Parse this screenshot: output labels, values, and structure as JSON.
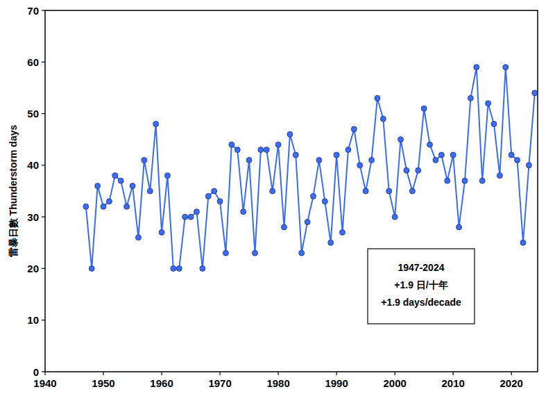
{
  "chart_data": {
    "type": "line",
    "ylabel": "雷暴日數 Thunderstorm days",
    "annotations": [
      "1947-2024",
      "+1.9 日/十年",
      "+1.9 days/decade"
    ],
    "x": [
      1947,
      1948,
      1949,
      1950,
      1951,
      1952,
      1953,
      1954,
      1955,
      1956,
      1957,
      1958,
      1959,
      1960,
      1961,
      1962,
      1963,
      1964,
      1965,
      1966,
      1967,
      1968,
      1969,
      1970,
      1971,
      1972,
      1973,
      1974,
      1975,
      1976,
      1977,
      1978,
      1979,
      1980,
      1981,
      1982,
      1983,
      1984,
      1985,
      1986,
      1987,
      1988,
      1989,
      1990,
      1991,
      1992,
      1993,
      1994,
      1995,
      1996,
      1997,
      1998,
      1999,
      2000,
      2001,
      2002,
      2003,
      2004,
      2005,
      2006,
      2007,
      2008,
      2009,
      2010,
      2011,
      2012,
      2013,
      2014,
      2015,
      2016,
      2017,
      2018,
      2019,
      2020,
      2021,
      2022,
      2023,
      2024
    ],
    "values": [
      32,
      20,
      36,
      32,
      33,
      38,
      37,
      32,
      36,
      26,
      41,
      35,
      48,
      27,
      38,
      20,
      20,
      30,
      30,
      31,
      20,
      34,
      35,
      33,
      23,
      44,
      43,
      31,
      41,
      23,
      43,
      43,
      35,
      44,
      28,
      46,
      42,
      23,
      29,
      34,
      41,
      33,
      25,
      42,
      27,
      43,
      47,
      40,
      35,
      41,
      53,
      49,
      35,
      30,
      45,
      39,
      35,
      39,
      51,
      44,
      41,
      42,
      37,
      42,
      28,
      37,
      53,
      59,
      37,
      52,
      48,
      38,
      59,
      42,
      41,
      25,
      40,
      54
    ],
    "color": "#3a6cf4",
    "marker": "circle",
    "xlim": [
      1940,
      2024.5
    ],
    "xticks": [
      1940,
      1950,
      1960,
      1970,
      1980,
      1990,
      2000,
      2010,
      2020
    ],
    "ylim": [
      0,
      70
    ],
    "yticks": [
      0,
      10,
      20,
      30,
      40,
      50,
      60,
      70
    ],
    "grid": false
  }
}
